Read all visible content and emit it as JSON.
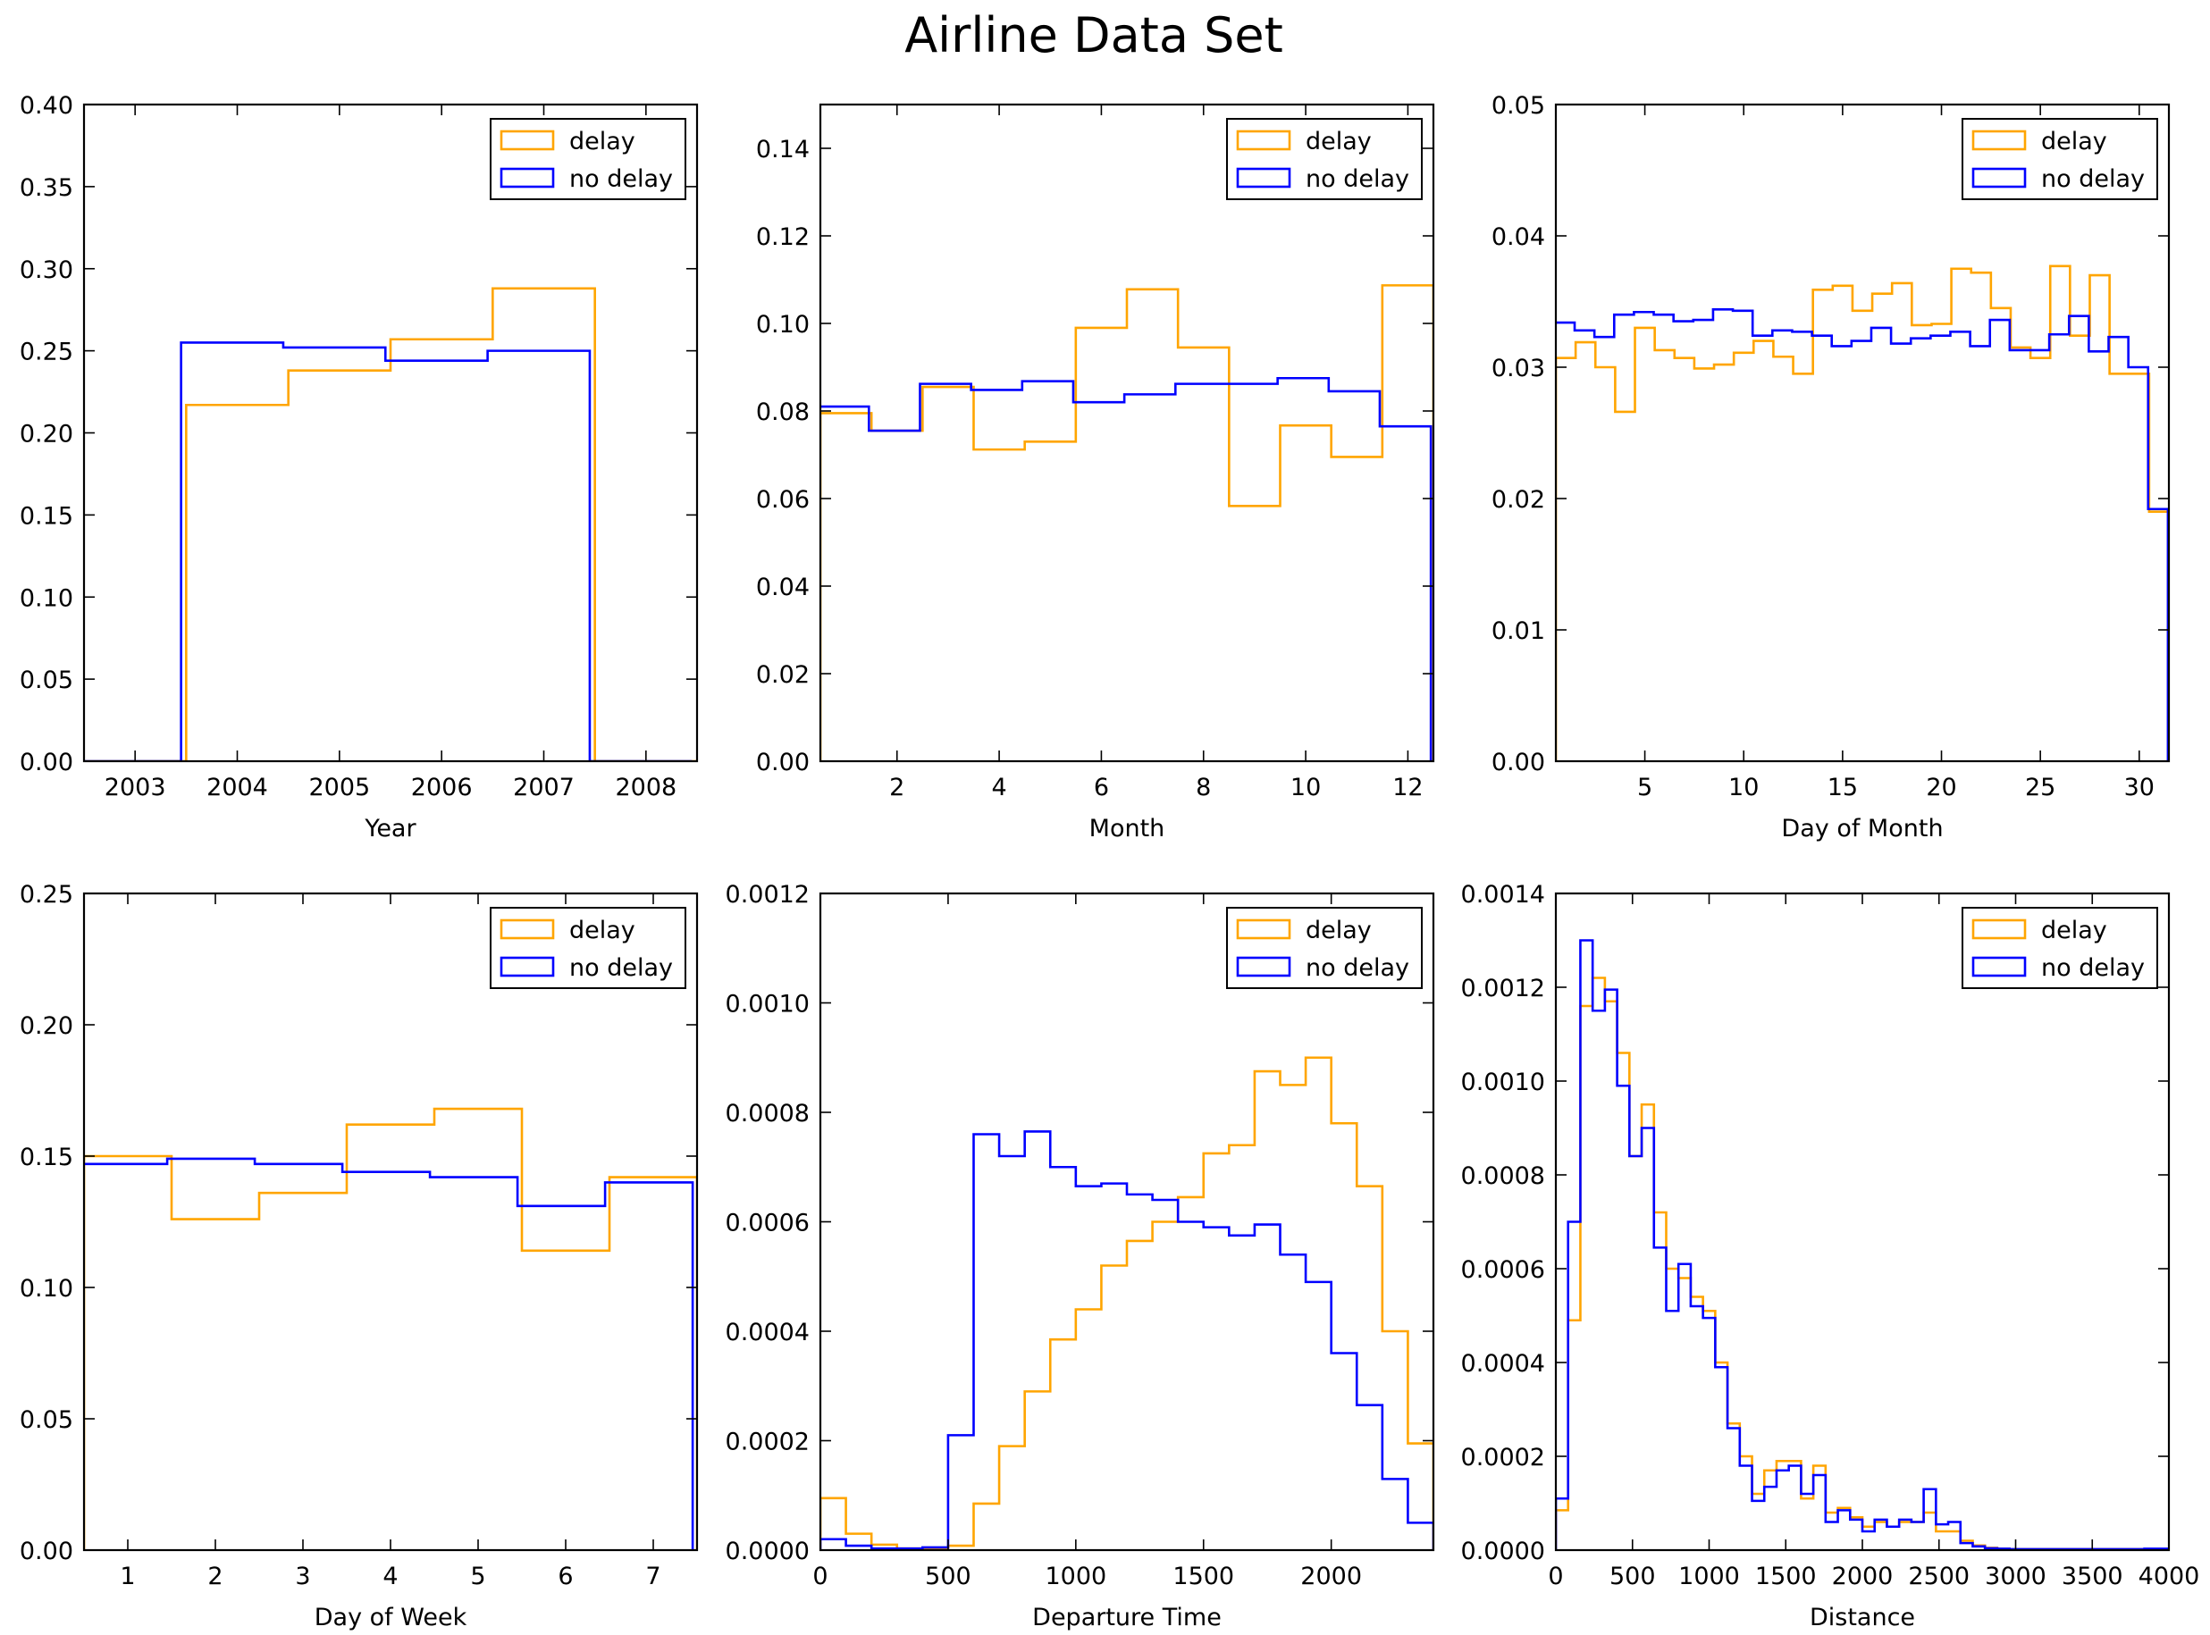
{
  "figure": {
    "title": "Airline Data Set"
  },
  "colors": {
    "delay": "#ffa500",
    "no_delay": "#0000ff",
    "axes": "#000000",
    "background": "#ffffff"
  },
  "chart_data": [
    {
      "type": "step",
      "xlabel": "Year",
      "xlim": [
        2002.5,
        2008.5
      ],
      "ylim": [
        0,
        0.4
      ],
      "xticks": [
        2003,
        2004,
        2005,
        2006,
        2007,
        2008
      ],
      "yticks": [
        0.0,
        0.05,
        0.1,
        0.15,
        0.2,
        0.25,
        0.3,
        0.35,
        0.4
      ],
      "ytick_labels": [
        "0.00",
        "0.05",
        "0.10",
        "0.15",
        "0.20",
        "0.25",
        "0.30",
        "0.35",
        "0.40"
      ],
      "legend": {
        "position": "upper right",
        "entries": [
          "delay",
          "no delay"
        ]
      },
      "series": [
        {
          "name": "delay",
          "color": "#ffa500",
          "edges": [
            2002.5,
            2003.5,
            2004.5,
            2005.5,
            2006.5,
            2007.5,
            2008.5
          ],
          "values": [
            0,
            0.217,
            0.238,
            0.257,
            0.288,
            0
          ]
        },
        {
          "name": "no delay",
          "color": "#0000ff",
          "edges": [
            2002.45,
            2003.45,
            2004.45,
            2005.45,
            2006.45,
            2007.45,
            2008.45
          ],
          "values": [
            0,
            0.255,
            0.252,
            0.244,
            0.25,
            0
          ]
        }
      ]
    },
    {
      "type": "step",
      "xlabel": "Month",
      "xlim": [
        0.5,
        12.5
      ],
      "ylim": [
        0,
        0.15
      ],
      "xticks": [
        2,
        4,
        6,
        8,
        10,
        12
      ],
      "yticks": [
        0.0,
        0.02,
        0.04,
        0.06,
        0.08,
        0.1,
        0.12,
        0.14
      ],
      "ytick_labels": [
        "0.00",
        "0.02",
        "0.04",
        "0.06",
        "0.08",
        "0.10",
        "0.12",
        "0.14"
      ],
      "legend": {
        "position": "upper right",
        "entries": [
          "delay",
          "no delay"
        ]
      },
      "series": [
        {
          "name": "delay",
          "color": "#ffa500",
          "edges": [
            0.5,
            1.5,
            2.5,
            3.5,
            4.5,
            5.5,
            6.5,
            7.5,
            8.5,
            9.5,
            10.5,
            11.5,
            12.5
          ],
          "values": [
            0.0795,
            0.0755,
            0.0855,
            0.0712,
            0.073,
            0.099,
            0.1078,
            0.0945,
            0.0583,
            0.0767,
            0.0695,
            0.1087
          ]
        },
        {
          "name": "no delay",
          "color": "#0000ff",
          "edges": [
            0.45,
            1.45,
            2.45,
            3.45,
            4.45,
            5.45,
            6.45,
            7.45,
            8.45,
            9.45,
            10.45,
            11.45,
            12.45
          ],
          "values": [
            0.081,
            0.0755,
            0.0862,
            0.0848,
            0.0868,
            0.082,
            0.0838,
            0.0862,
            0.0862,
            0.0875,
            0.0845,
            0.0765
          ]
        }
      ]
    },
    {
      "type": "step",
      "xlabel": "Day of Month",
      "xlim": [
        0.5,
        31.5
      ],
      "ylim": [
        0,
        0.05
      ],
      "xticks": [
        5,
        10,
        15,
        20,
        25,
        30
      ],
      "yticks": [
        0.0,
        0.01,
        0.02,
        0.03,
        0.04,
        0.05
      ],
      "ytick_labels": [
        "0.00",
        "0.01",
        "0.02",
        "0.03",
        "0.04",
        "0.05"
      ],
      "legend": {
        "position": "upper right",
        "entries": [
          "delay",
          "no delay"
        ]
      },
      "series": [
        {
          "name": "delay",
          "color": "#ffa500",
          "edges": [
            0.5,
            1.5,
            2.5,
            3.5,
            4.5,
            5.5,
            6.5,
            7.5,
            8.5,
            9.5,
            10.5,
            11.5,
            12.5,
            13.5,
            14.5,
            15.5,
            16.5,
            17.5,
            18.5,
            19.5,
            20.5,
            21.5,
            22.5,
            23.5,
            24.5,
            25.5,
            26.5,
            27.5,
            28.5,
            29.5,
            30.5,
            31.5
          ],
          "values": [
            0.0307,
            0.0319,
            0.03,
            0.0266,
            0.033,
            0.0313,
            0.0307,
            0.0299,
            0.0302,
            0.0311,
            0.032,
            0.0308,
            0.0295,
            0.0359,
            0.0362,
            0.0343,
            0.0356,
            0.0364,
            0.0332,
            0.0333,
            0.0375,
            0.0372,
            0.0345,
            0.0315,
            0.0307,
            0.0377,
            0.0324,
            0.037,
            0.0295,
            0.0295,
            0.019
          ]
        },
        {
          "name": "no delay",
          "color": "#0000ff",
          "edges": [
            0.45,
            1.45,
            2.45,
            3.45,
            4.45,
            5.45,
            6.45,
            7.45,
            8.45,
            9.45,
            10.45,
            11.45,
            12.45,
            13.45,
            14.45,
            15.45,
            16.45,
            17.45,
            18.45,
            19.45,
            20.45,
            21.45,
            22.45,
            23.45,
            24.45,
            25.45,
            26.45,
            27.45,
            28.45,
            29.45,
            30.45,
            31.45
          ],
          "values": [
            0.0334,
            0.0328,
            0.0323,
            0.034,
            0.0342,
            0.034,
            0.0335,
            0.0336,
            0.0344,
            0.0343,
            0.0324,
            0.0328,
            0.0327,
            0.0324,
            0.0316,
            0.032,
            0.033,
            0.0318,
            0.0322,
            0.0324,
            0.0327,
            0.0316,
            0.0336,
            0.0313,
            0.0313,
            0.0325,
            0.0339,
            0.0312,
            0.0323,
            0.03,
            0.0192
          ]
        }
      ]
    },
    {
      "type": "step",
      "xlabel": "Day of Week",
      "xlim": [
        0.5,
        7.5
      ],
      "ylim": [
        0,
        0.25
      ],
      "xticks": [
        1,
        2,
        3,
        4,
        5,
        6,
        7
      ],
      "yticks": [
        0.0,
        0.05,
        0.1,
        0.15,
        0.2,
        0.25
      ],
      "ytick_labels": [
        "0.00",
        "0.05",
        "0.10",
        "0.15",
        "0.20",
        "0.25"
      ],
      "legend": {
        "position": "upper right",
        "entries": [
          "delay",
          "no delay"
        ]
      },
      "series": [
        {
          "name": "delay",
          "color": "#ffa500",
          "edges": [
            0.5,
            1.5,
            2.5,
            3.5,
            4.5,
            5.5,
            6.5,
            7.5
          ],
          "values": [
            0.15,
            0.126,
            0.136,
            0.162,
            0.168,
            0.114,
            0.142
          ]
        },
        {
          "name": "no delay",
          "color": "#0000ff",
          "edges": [
            0.45,
            1.45,
            2.45,
            3.45,
            4.45,
            5.45,
            6.45,
            7.45
          ],
          "values": [
            0.147,
            0.149,
            0.147,
            0.144,
            0.142,
            0.131,
            0.14
          ]
        }
      ]
    },
    {
      "type": "step",
      "xlabel": "Departure Time",
      "xlim": [
        0,
        2400
      ],
      "ylim": [
        0,
        0.0012
      ],
      "xticks": [
        0,
        500,
        1000,
        1500,
        2000
      ],
      "yticks": [
        0.0,
        0.0002,
        0.0004,
        0.0006,
        0.0008,
        0.001,
        0.0012
      ],
      "ytick_labels": [
        "0.0000",
        "0.0002",
        "0.0004",
        "0.0006",
        "0.0008",
        "0.0010",
        "0.0012"
      ],
      "legend": {
        "position": "upper right",
        "entries": [
          "delay",
          "no delay"
        ]
      },
      "series": [
        {
          "name": "delay",
          "color": "#ffa500",
          "edges": [
            0,
            100,
            200,
            300,
            400,
            500,
            600,
            700,
            800,
            900,
            1000,
            1100,
            1200,
            1300,
            1400,
            1500,
            1600,
            1700,
            1800,
            1900,
            2000,
            2100,
            2200,
            2300,
            2400
          ],
          "values": [
            9.5e-05,
            3e-05,
            1e-05,
            3e-06,
            3e-06,
            8e-06,
            8.5e-05,
            0.00019,
            0.00029,
            0.000385,
            0.00044,
            0.00052,
            0.000565,
            0.0006,
            0.000645,
            0.000725,
            0.00074,
            0.000875,
            0.00085,
            0.0009,
            0.00078,
            0.000665,
            0.0004,
            0.000195
          ]
        },
        {
          "name": "no delay",
          "color": "#0000ff",
          "edges": [
            0,
            100,
            200,
            300,
            400,
            500,
            600,
            700,
            800,
            900,
            1000,
            1100,
            1200,
            1300,
            1400,
            1500,
            1600,
            1700,
            1800,
            1900,
            2000,
            2100,
            2200,
            2300,
            2400
          ],
          "values": [
            2e-05,
            8e-06,
            3e-06,
            3e-06,
            5e-06,
            0.00021,
            0.00076,
            0.00072,
            0.000765,
            0.0007,
            0.000665,
            0.00067,
            0.00065,
            0.00064,
            0.0006,
            0.00059,
            0.000575,
            0.000595,
            0.00054,
            0.00049,
            0.00036,
            0.000265,
            0.00013,
            5e-05
          ]
        }
      ]
    },
    {
      "type": "step",
      "xlabel": "Distance",
      "xlim": [
        0,
        4000
      ],
      "ylim": [
        0,
        0.0014
      ],
      "xticks": [
        0,
        500,
        1000,
        1500,
        2000,
        2500,
        3000,
        3500,
        4000
      ],
      "yticks": [
        0.0,
        0.0002,
        0.0004,
        0.0006,
        0.0008,
        0.001,
        0.0012,
        0.0014
      ],
      "ytick_labels": [
        "0.0000",
        "0.0002",
        "0.0004",
        "0.0006",
        "0.0008",
        "0.0010",
        "0.0012",
        "0.0014"
      ],
      "legend": {
        "position": "upper right",
        "entries": [
          "delay",
          "no delay"
        ]
      },
      "series": [
        {
          "name": "delay",
          "color": "#ffa500",
          "edges": [
            0,
            80,
            160,
            240,
            320,
            400,
            480,
            560,
            640,
            720,
            800,
            880,
            960,
            1040,
            1120,
            1200,
            1280,
            1360,
            1440,
            1520,
            1600,
            1680,
            1760,
            1840,
            1920,
            2000,
            2080,
            2160,
            2240,
            2320,
            2400,
            2480,
            2560,
            2640,
            2720,
            2800,
            2880,
            2960,
            3040,
            3120,
            3200,
            3280,
            3360,
            3440,
            3520,
            3600,
            3680,
            3760,
            3840,
            3920,
            4000
          ],
          "values": [
            8.5e-05,
            0.00049,
            0.00116,
            0.00122,
            0.00117,
            0.00106,
            0.00084,
            0.00095,
            0.00072,
            0.0006,
            0.00058,
            0.00054,
            0.00051,
            0.0004,
            0.00027,
            0.0002,
            0.00012,
            0.00017,
            0.00019,
            0.00019,
            0.00011,
            0.00018,
            8e-05,
            9e-05,
            7e-05,
            5e-05,
            6e-05,
            5e-05,
            6e-05,
            6e-05,
            8e-05,
            4e-05,
            4e-05,
            2e-05,
            1e-05,
            5e-06,
            3e-06,
            2e-06,
            2e-06,
            2e-06,
            2e-06,
            2e-06,
            2e-06,
            2e-06,
            2e-06,
            2e-06,
            2e-06,
            2e-06,
            2e-06,
            2e-06
          ]
        },
        {
          "name": "no delay",
          "color": "#0000ff",
          "edges": [
            0,
            80,
            160,
            240,
            320,
            400,
            480,
            560,
            640,
            720,
            800,
            880,
            960,
            1040,
            1120,
            1200,
            1280,
            1360,
            1440,
            1520,
            1600,
            1680,
            1760,
            1840,
            1920,
            2000,
            2080,
            2160,
            2240,
            2320,
            2400,
            2480,
            2560,
            2640,
            2720,
            2800,
            2880,
            2960,
            3040,
            3120,
            3200,
            3280,
            3360,
            3440,
            3520,
            3600,
            3680,
            3760,
            3840,
            3920,
            4000
          ],
          "values": [
            0.00011,
            0.0007,
            0.0013,
            0.00115,
            0.001195,
            0.00099,
            0.00084,
            0.0009,
            0.000645,
            0.00051,
            0.00061,
            0.00052,
            0.000495,
            0.00039,
            0.00026,
            0.00018,
            0.000105,
            0.000135,
            0.00017,
            0.00018,
            0.00012,
            0.00016,
            6e-05,
            8.5e-05,
            6.5e-05,
            4e-05,
            6.5e-05,
            5e-05,
            6.5e-05,
            6e-05,
            0.00013,
            5.5e-05,
            6e-05,
            1.5e-05,
            8e-06,
            4e-06,
            3e-06,
            2e-06,
            2e-06,
            2e-06,
            2e-06,
            2e-06,
            2e-06,
            2e-06,
            2e-06,
            2e-06,
            2e-06,
            2e-06,
            3e-06,
            3e-06
          ]
        }
      ]
    }
  ]
}
